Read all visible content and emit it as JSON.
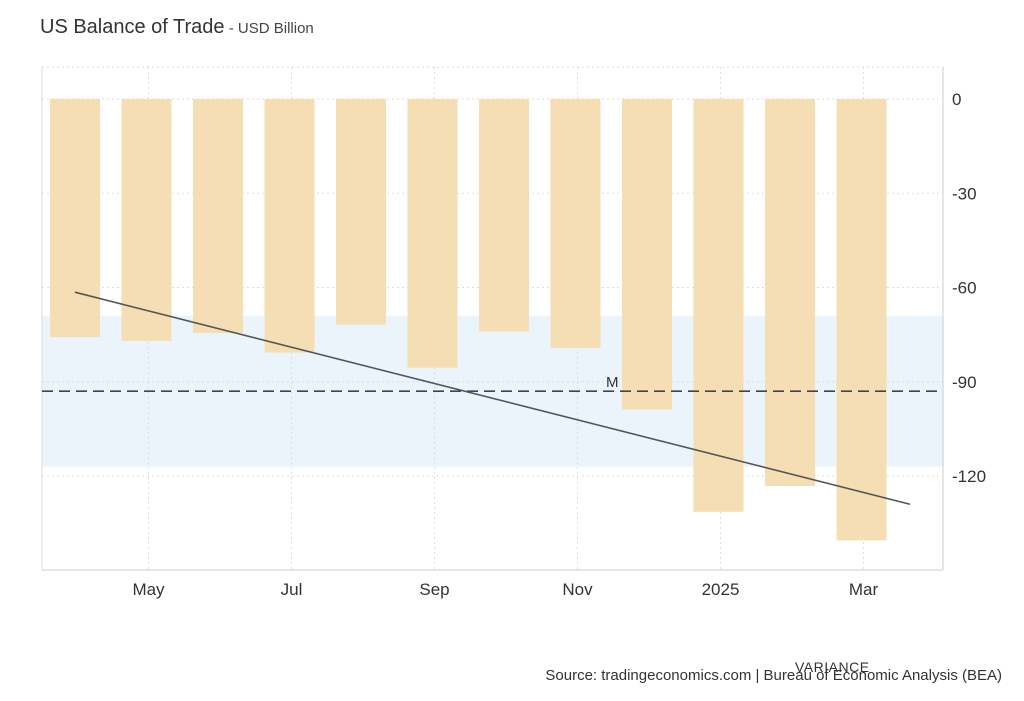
{
  "header": {
    "title": "US Balance of Trade",
    "separator": " - ",
    "unit": "USD Billion"
  },
  "footer": {
    "source": "Source: tradingeconomics.com | Bureau of Economic Analysis (BEA)",
    "overlay_label": "VARIANCE"
  },
  "chart_data": {
    "type": "bar",
    "categories": [
      "2024-04",
      "2024-05",
      "2024-06",
      "2024-07",
      "2024-08",
      "2024-09",
      "2024-10",
      "2024-11",
      "2024-12",
      "2025-01",
      "2025-02",
      "2025-03"
    ],
    "values": [
      -75.8,
      -77.0,
      -74.5,
      -80.7,
      -71.8,
      -85.5,
      -74.0,
      -79.2,
      -98.8,
      -131.4,
      -123.2,
      -140.5
    ],
    "xticks": [
      "May",
      "Jul",
      "Sep",
      "Nov",
      "2025",
      "Mar"
    ],
    "yticks": [
      0,
      -30,
      -60,
      -90,
      -120
    ],
    "ylim": [
      -150,
      10
    ],
    "bar_color": "#f5deb3",
    "mean_line": {
      "label": "M",
      "value": -93
    },
    "variance_band": [
      -117,
      -69
    ],
    "band_color": "#eaf4fa",
    "trend_line": {
      "from": -61.5,
      "to": -129
    },
    "grid": true
  }
}
